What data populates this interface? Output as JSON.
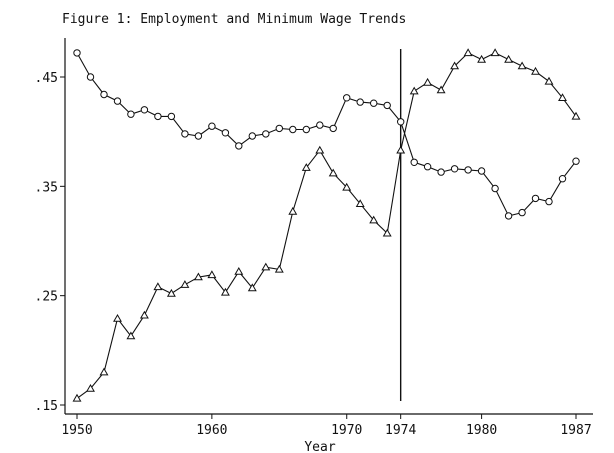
{
  "chart_data": {
    "type": "line",
    "title": "Figure 1: Employment and Minimum Wage Trends",
    "xlabel": "Year",
    "ylabel": "",
    "xlim": [
      1950,
      1987
    ],
    "ylim": [
      0.15,
      0.48
    ],
    "grid": false,
    "legend": "none",
    "x_ticks": [
      1950,
      1960,
      1970,
      1974,
      1980,
      1987
    ],
    "y_ticks": [
      0.15,
      0.25,
      0.35,
      0.45
    ],
    "y_tick_labels": [
      ".15",
      ".25",
      ".35",
      ".45"
    ],
    "vertical_line_x": 1974,
    "series": [
      {
        "marker": "circle",
        "x": [
          1950,
          1951,
          1952,
          1953,
          1954,
          1955,
          1956,
          1957,
          1958,
          1959,
          1960,
          1961,
          1962,
          1963,
          1964,
          1965,
          1966,
          1967,
          1968,
          1969,
          1970,
          1971,
          1972,
          1973,
          1974,
          1975,
          1976,
          1977,
          1978,
          1979,
          1980,
          1981,
          1982,
          1983,
          1984,
          1985,
          1986,
          1987
        ],
        "values": [
          0.472,
          0.45,
          0.434,
          0.428,
          0.416,
          0.42,
          0.414,
          0.414,
          0.398,
          0.396,
          0.405,
          0.399,
          0.387,
          0.396,
          0.398,
          0.403,
          0.402,
          0.402,
          0.406,
          0.403,
          0.431,
          0.427,
          0.426,
          0.424,
          0.409,
          0.372,
          0.368,
          0.363,
          0.366,
          0.365,
          0.364,
          0.348,
          0.323,
          0.326,
          0.339,
          0.336,
          0.357,
          0.373
        ]
      },
      {
        "marker": "triangle",
        "x": [
          1950,
          1951,
          1952,
          1953,
          1954,
          1955,
          1956,
          1957,
          1958,
          1959,
          1960,
          1961,
          1962,
          1963,
          1964,
          1965,
          1966,
          1967,
          1968,
          1969,
          1970,
          1971,
          1972,
          1973,
          1974,
          1975,
          1976,
          1977,
          1978,
          1979,
          1980,
          1981,
          1982,
          1983,
          1984,
          1985,
          1986,
          1987
        ],
        "values": [
          0.156,
          0.165,
          0.18,
          0.229,
          0.213,
          0.232,
          0.258,
          0.252,
          0.26,
          0.267,
          0.269,
          0.253,
          0.272,
          0.257,
          0.276,
          0.274,
          0.327,
          0.367,
          0.383,
          0.362,
          0.349,
          0.334,
          0.319,
          0.307,
          0.383,
          0.437,
          0.445,
          0.438,
          0.46,
          0.472,
          0.466,
          0.472,
          0.466,
          0.46,
          0.455,
          0.446,
          0.431,
          0.414
        ]
      }
    ]
  }
}
